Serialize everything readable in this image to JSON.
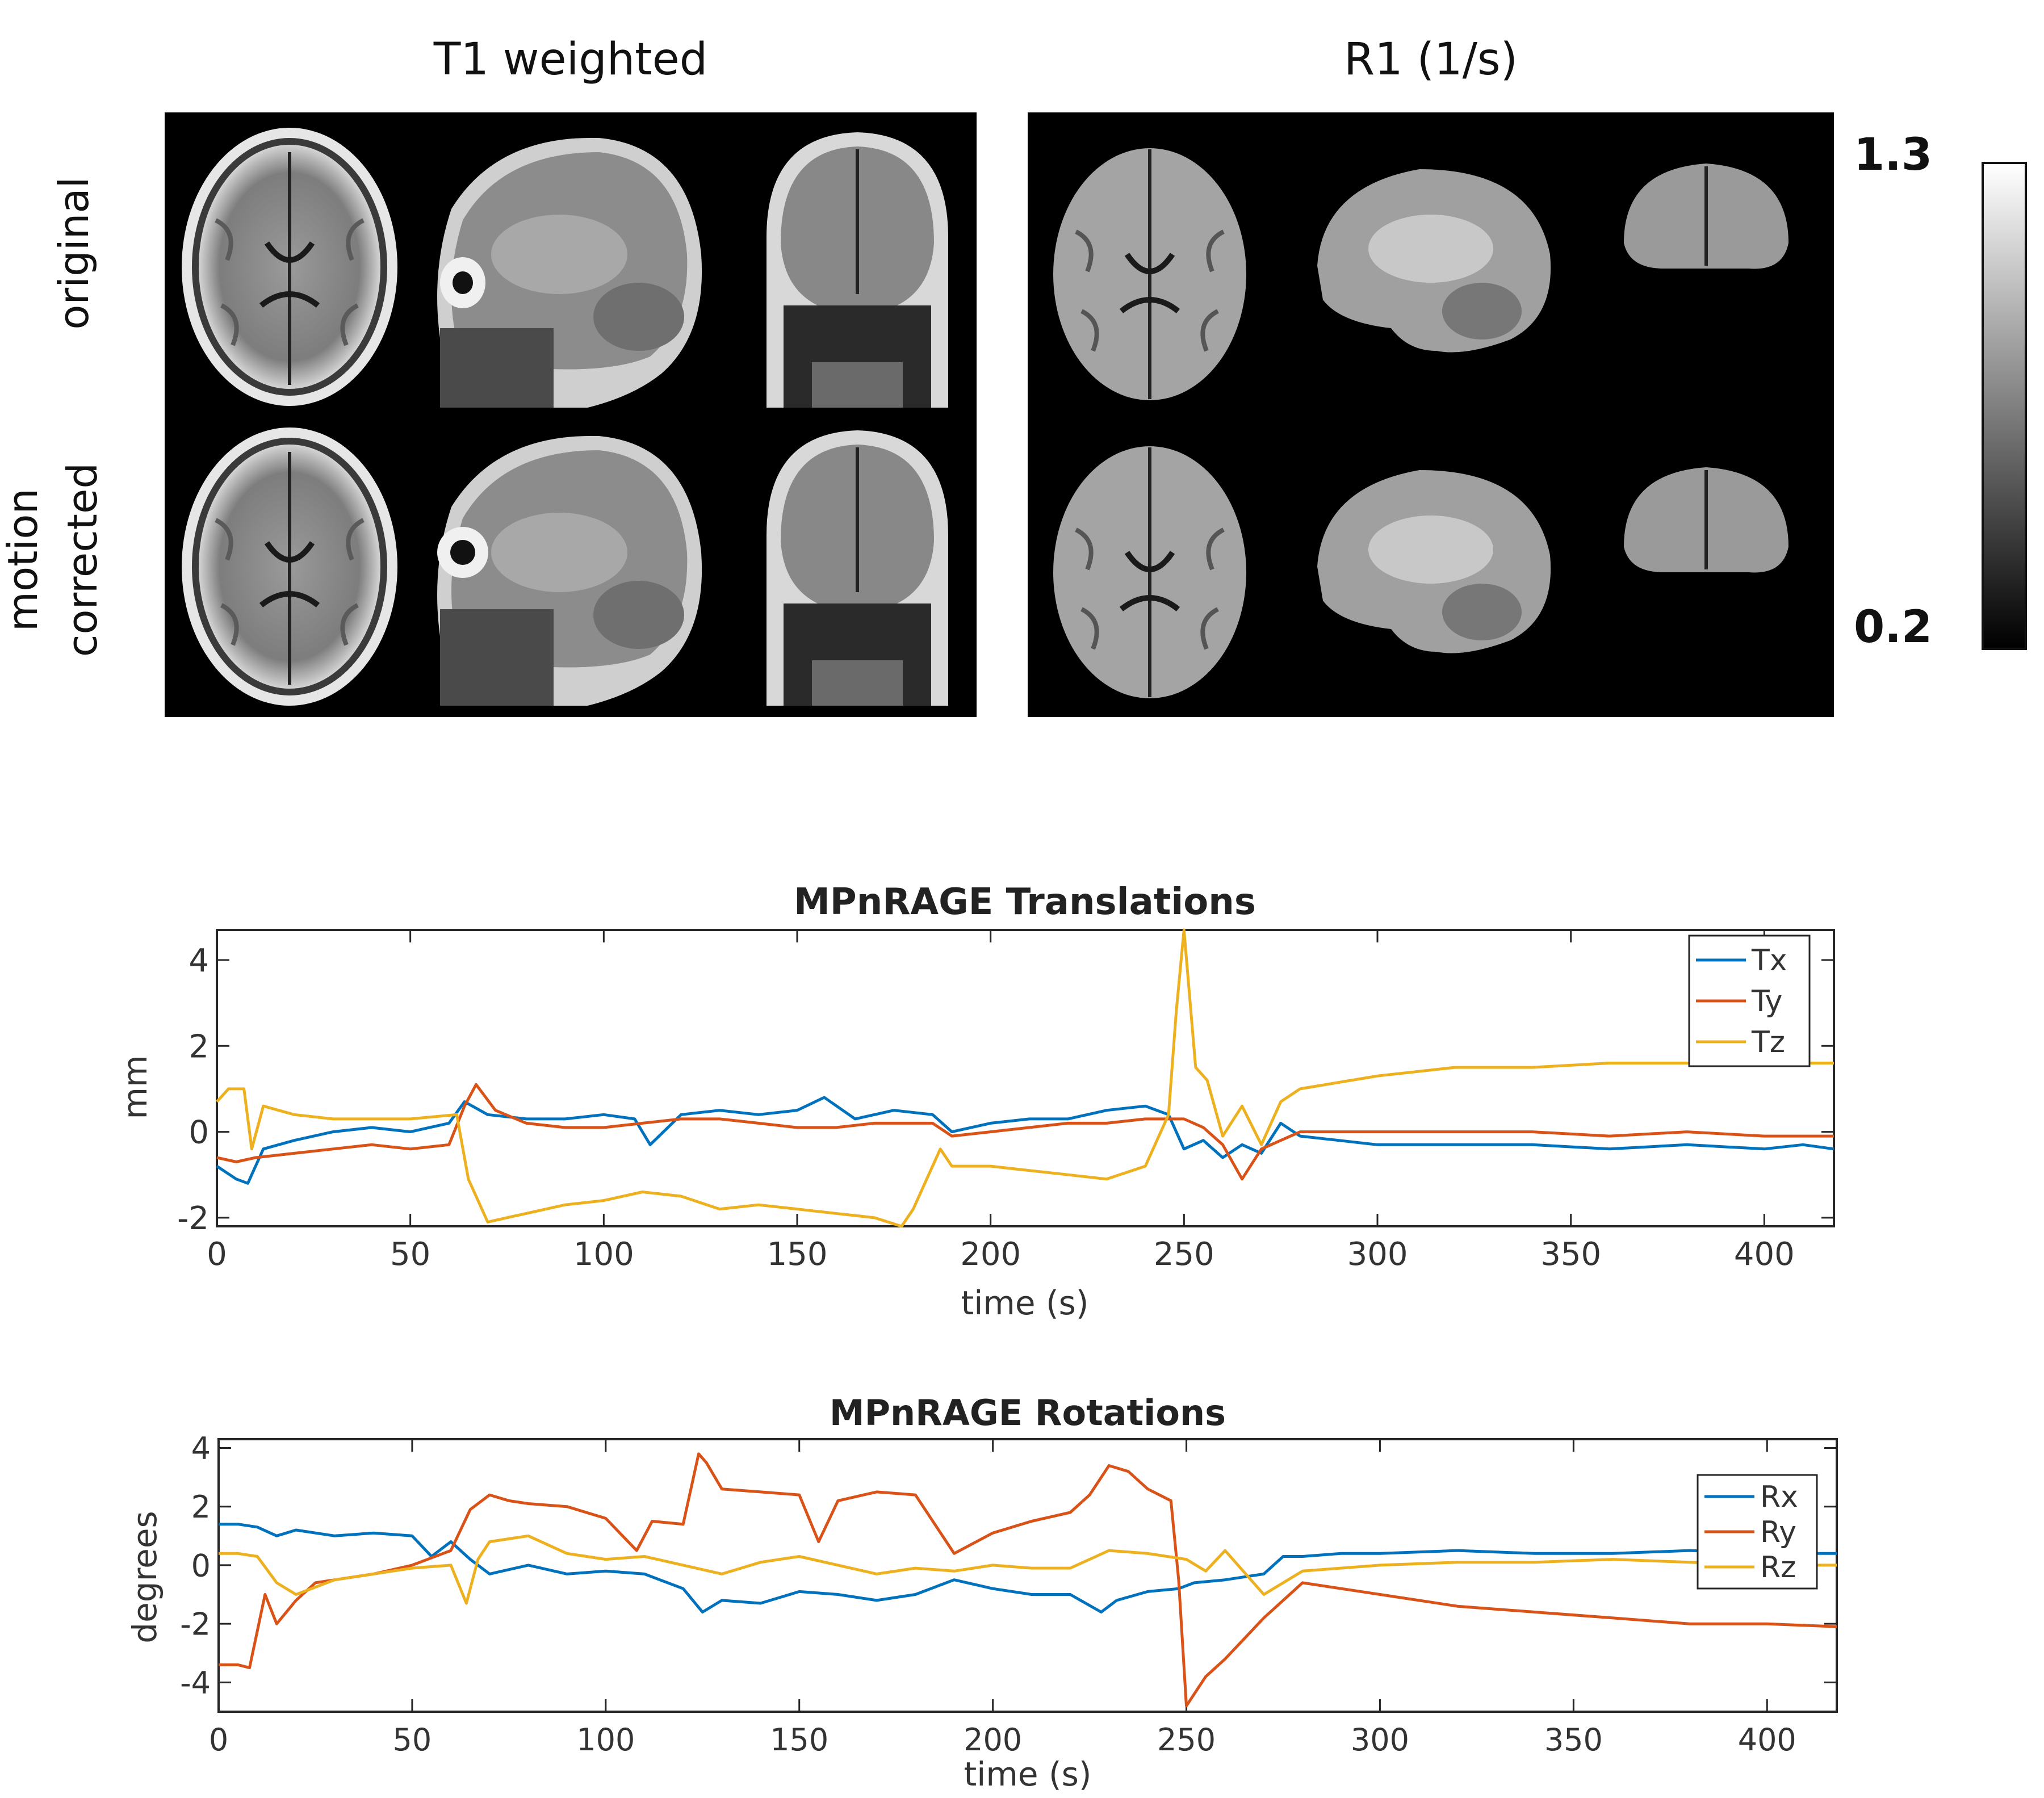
{
  "panels": {
    "t1_title": "T1 weighted",
    "r1_title": "R1 (1/s)",
    "row_original": "original",
    "row_corrected_1": "motion",
    "row_corrected_2": "corrected",
    "colorbar": {
      "max_label": "1.3",
      "min_label": "0.2",
      "max": 1.3,
      "min": 0.2,
      "colormap": "gray"
    }
  },
  "chart_data": [
    {
      "type": "line",
      "title": "MPnRAGE Translations",
      "xlabel": "time (s)",
      "ylabel": "mm",
      "xlim": [
        0,
        418
      ],
      "ylim": [
        -2.2,
        4.7
      ],
      "xticks": [
        0,
        50,
        100,
        150,
        200,
        250,
        300,
        350,
        400
      ],
      "yticks": [
        -2,
        0,
        2,
        4
      ],
      "grid": false,
      "legend": "top-right",
      "series": [
        {
          "name": "Tx",
          "color": "#0072BD",
          "x": [
            0,
            5,
            8,
            12,
            20,
            30,
            40,
            50,
            60,
            64,
            70,
            80,
            90,
            100,
            108,
            112,
            120,
            130,
            140,
            150,
            157,
            165,
            175,
            185,
            190,
            200,
            210,
            220,
            230,
            240,
            246,
            250,
            255,
            260,
            265,
            270,
            275,
            280,
            290,
            300,
            320,
            340,
            360,
            380,
            400,
            410,
            418
          ],
          "y": [
            -0.8,
            -1.1,
            -1.2,
            -0.4,
            -0.2,
            0.0,
            0.1,
            0.0,
            0.2,
            0.7,
            0.4,
            0.3,
            0.3,
            0.4,
            0.3,
            -0.3,
            0.4,
            0.5,
            0.4,
            0.5,
            0.8,
            0.3,
            0.5,
            0.4,
            0.0,
            0.2,
            0.3,
            0.3,
            0.5,
            0.6,
            0.4,
            -0.4,
            -0.2,
            -0.6,
            -0.3,
            -0.5,
            0.2,
            -0.1,
            -0.2,
            -0.3,
            -0.3,
            -0.3,
            -0.4,
            -0.3,
            -0.4,
            -0.3,
            -0.4
          ]
        },
        {
          "name": "Ty",
          "color": "#D95319",
          "x": [
            0,
            5,
            10,
            20,
            30,
            40,
            50,
            60,
            64,
            67,
            72,
            80,
            90,
            100,
            110,
            120,
            130,
            140,
            150,
            160,
            170,
            180,
            185,
            190,
            200,
            210,
            220,
            230,
            240,
            246,
            250,
            255,
            260,
            265,
            270,
            280,
            300,
            320,
            340,
            360,
            380,
            400,
            418
          ],
          "y": [
            -0.6,
            -0.7,
            -0.6,
            -0.5,
            -0.4,
            -0.3,
            -0.4,
            -0.3,
            0.6,
            1.1,
            0.5,
            0.2,
            0.1,
            0.1,
            0.2,
            0.3,
            0.3,
            0.2,
            0.1,
            0.1,
            0.2,
            0.2,
            0.2,
            -0.1,
            0.0,
            0.1,
            0.2,
            0.2,
            0.3,
            0.3,
            0.3,
            0.1,
            -0.3,
            -1.1,
            -0.4,
            0.0,
            0.0,
            0.0,
            0.0,
            -0.1,
            0.0,
            -0.1,
            -0.1
          ]
        },
        {
          "name": "Tz",
          "color": "#EDB120",
          "x": [
            0,
            3,
            7,
            9,
            12,
            20,
            30,
            40,
            50,
            62,
            65,
            70,
            80,
            90,
            100,
            110,
            120,
            130,
            140,
            150,
            160,
            170,
            177,
            180,
            187,
            190,
            200,
            210,
            220,
            230,
            240,
            246,
            248,
            250,
            253,
            256,
            260,
            265,
            270,
            275,
            280,
            300,
            320,
            340,
            360,
            380,
            400,
            418
          ],
          "y": [
            0.7,
            1.0,
            1.0,
            -0.4,
            0.6,
            0.4,
            0.3,
            0.3,
            0.3,
            0.4,
            -1.1,
            -2.1,
            -1.9,
            -1.7,
            -1.6,
            -1.4,
            -1.5,
            -1.8,
            -1.7,
            -1.8,
            -1.9,
            -2.0,
            -2.2,
            -1.8,
            -0.4,
            -0.8,
            -0.8,
            -0.9,
            -1.0,
            -1.1,
            -0.8,
            0.4,
            2.8,
            4.7,
            1.5,
            1.2,
            -0.1,
            0.6,
            -0.3,
            0.7,
            1.0,
            1.3,
            1.5,
            1.5,
            1.6,
            1.6,
            1.6,
            1.6
          ]
        }
      ]
    },
    {
      "type": "line",
      "title": "MPnRAGE Rotations",
      "xlabel": "time (s)",
      "ylabel": "degrees",
      "xlim": [
        0,
        418
      ],
      "ylim": [
        -5.0,
        4.3
      ],
      "xticks": [
        0,
        50,
        100,
        150,
        200,
        250,
        300,
        350,
        400
      ],
      "yticks": [
        -4,
        -2,
        0,
        2,
        4
      ],
      "grid": false,
      "legend": "right",
      "series": [
        {
          "name": "Rx",
          "color": "#0072BD",
          "x": [
            0,
            5,
            10,
            15,
            20,
            30,
            40,
            50,
            55,
            60,
            65,
            70,
            80,
            90,
            100,
            110,
            120,
            125,
            130,
            140,
            150,
            160,
            170,
            180,
            190,
            200,
            210,
            220,
            228,
            232,
            240,
            248,
            252,
            260,
            270,
            275,
            280,
            290,
            300,
            320,
            340,
            360,
            380,
            400,
            410,
            418
          ],
          "y": [
            1.4,
            1.4,
            1.3,
            1.0,
            1.2,
            1.0,
            1.1,
            1.0,
            0.3,
            0.8,
            0.2,
            -0.3,
            0.0,
            -0.3,
            -0.2,
            -0.3,
            -0.8,
            -1.6,
            -1.2,
            -1.3,
            -0.9,
            -1.0,
            -1.2,
            -1.0,
            -0.5,
            -0.8,
            -1.0,
            -1.0,
            -1.6,
            -1.2,
            -0.9,
            -0.8,
            -0.6,
            -0.5,
            -0.3,
            0.3,
            0.3,
            0.4,
            0.4,
            0.5,
            0.4,
            0.4,
            0.5,
            0.4,
            0.4,
            0.4
          ]
        },
        {
          "name": "Ry",
          "color": "#D95319",
          "x": [
            0,
            5,
            8,
            12,
            15,
            20,
            25,
            30,
            40,
            50,
            60,
            65,
            70,
            75,
            80,
            90,
            100,
            108,
            112,
            120,
            124,
            126,
            130,
            140,
            150,
            155,
            160,
            170,
            180,
            185,
            190,
            200,
            210,
            220,
            225,
            230,
            235,
            240,
            246,
            248,
            250,
            255,
            260,
            265,
            270,
            275,
            280,
            300,
            320,
            340,
            360,
            380,
            400,
            418
          ],
          "y": [
            -3.4,
            -3.4,
            -3.5,
            -1.0,
            -2.0,
            -1.2,
            -0.6,
            -0.5,
            -0.3,
            0.0,
            0.5,
            1.9,
            2.4,
            2.2,
            2.1,
            2.0,
            1.6,
            0.5,
            1.5,
            1.4,
            3.8,
            3.5,
            2.6,
            2.5,
            2.4,
            0.8,
            2.2,
            2.5,
            2.4,
            1.4,
            0.4,
            1.1,
            1.5,
            1.8,
            2.4,
            3.4,
            3.2,
            2.6,
            2.2,
            -0.5,
            -4.8,
            -3.8,
            -3.2,
            -2.5,
            -1.8,
            -1.2,
            -0.6,
            -1.0,
            -1.4,
            -1.6,
            -1.8,
            -2.0,
            -2.0,
            -2.1
          ]
        },
        {
          "name": "Rz",
          "color": "#EDB120",
          "x": [
            0,
            5,
            10,
            15,
            20,
            30,
            40,
            50,
            60,
            64,
            67,
            70,
            80,
            85,
            90,
            100,
            110,
            120,
            130,
            140,
            150,
            160,
            170,
            180,
            190,
            200,
            210,
            220,
            225,
            230,
            240,
            250,
            255,
            260,
            270,
            280,
            300,
            320,
            340,
            360,
            380,
            400,
            418
          ],
          "y": [
            0.4,
            0.4,
            0.3,
            -0.6,
            -1.0,
            -0.5,
            -0.3,
            -0.1,
            0.0,
            -1.3,
            0.2,
            0.8,
            1.0,
            0.7,
            0.4,
            0.2,
            0.3,
            0.0,
            -0.3,
            0.1,
            0.3,
            0.0,
            -0.3,
            -0.1,
            -0.2,
            0.0,
            -0.1,
            -0.1,
            0.2,
            0.5,
            0.4,
            0.2,
            -0.2,
            0.5,
            -1.0,
            -0.2,
            0.0,
            0.1,
            0.1,
            0.2,
            0.1,
            0.0,
            0.0
          ]
        }
      ]
    }
  ]
}
